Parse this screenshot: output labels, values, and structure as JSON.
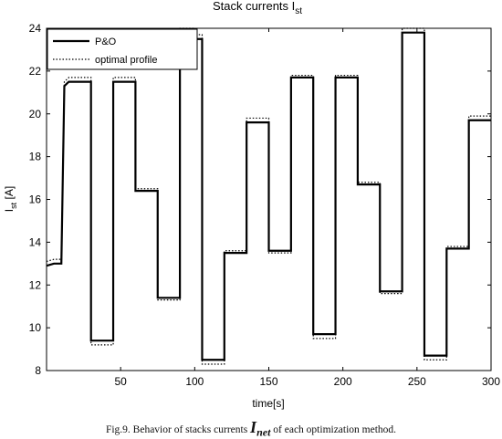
{
  "chart_data": {
    "type": "line",
    "title": "Stack currents I",
    "title_sub": "st",
    "xlabel": "time[s]",
    "ylabel": "I",
    "ylabel_sub": "st",
    "ylabel_unit": " [A]",
    "xlim": [
      0,
      300
    ],
    "ylim": [
      8,
      24
    ],
    "xticks": [
      50,
      100,
      150,
      200,
      250,
      300
    ],
    "yticks": [
      8,
      10,
      12,
      14,
      16,
      18,
      20,
      22,
      24
    ],
    "grid": false,
    "legend_position": "top-left",
    "series": [
      {
        "name": "P&O",
        "style": "solid",
        "color": "#000000",
        "x": [
          0,
          5,
          10,
          12,
          15,
          30,
          30.01,
          45,
          45.01,
          60,
          60.01,
          75,
          75.01,
          90,
          90.01,
          100,
          100.01,
          105,
          105.01,
          120,
          120.01,
          135,
          135.01,
          150,
          150.01,
          165,
          165.01,
          180,
          180.01,
          195,
          195.01,
          210,
          210.01,
          225,
          225.01,
          240,
          240.01,
          255,
          255.01,
          270,
          270.01,
          285,
          285.01,
          300
        ],
        "y": [
          12.9,
          13.0,
          13.0,
          21.3,
          21.5,
          21.5,
          9.4,
          9.4,
          21.5,
          21.5,
          16.4,
          16.4,
          11.4,
          11.4,
          23.8,
          23.8,
          23.5,
          23.5,
          8.5,
          8.5,
          13.5,
          13.5,
          19.6,
          19.6,
          13.6,
          13.6,
          21.7,
          21.7,
          9.7,
          9.7,
          21.7,
          21.7,
          16.7,
          16.7,
          11.7,
          11.7,
          23.8,
          23.8,
          8.7,
          8.7,
          13.7,
          13.7,
          19.7,
          19.7
        ]
      },
      {
        "name": "optimal profile",
        "style": "dotted",
        "color": "#000000",
        "x": [
          0,
          5,
          10,
          12,
          15,
          30,
          30.01,
          45,
          45.01,
          60,
          60.01,
          75,
          75.01,
          90,
          90.01,
          100,
          100.01,
          105,
          105.01,
          120,
          120.01,
          135,
          135.01,
          150,
          150.01,
          165,
          165.01,
          180,
          180.01,
          195,
          195.01,
          210,
          210.01,
          225,
          225.01,
          240,
          240.01,
          255,
          255.01,
          270,
          270.01,
          285,
          285.01,
          300
        ],
        "y": [
          13.1,
          13.2,
          13.2,
          21.5,
          21.7,
          21.7,
          9.2,
          9.2,
          21.7,
          21.7,
          16.5,
          16.5,
          11.3,
          11.3,
          24.0,
          24.0,
          23.7,
          23.7,
          8.3,
          8.3,
          13.6,
          13.6,
          19.8,
          19.8,
          13.5,
          13.5,
          21.8,
          21.8,
          9.5,
          9.5,
          21.8,
          21.8,
          16.8,
          16.8,
          11.6,
          11.6,
          24.0,
          24.0,
          8.5,
          8.5,
          13.8,
          13.8,
          19.9,
          19.9
        ]
      }
    ]
  },
  "caption": {
    "prefix": "Fig.9. Behavior of stacks currents ",
    "symbol": "I",
    "symbol_sub": "net",
    "suffix": " of each optimization method."
  }
}
